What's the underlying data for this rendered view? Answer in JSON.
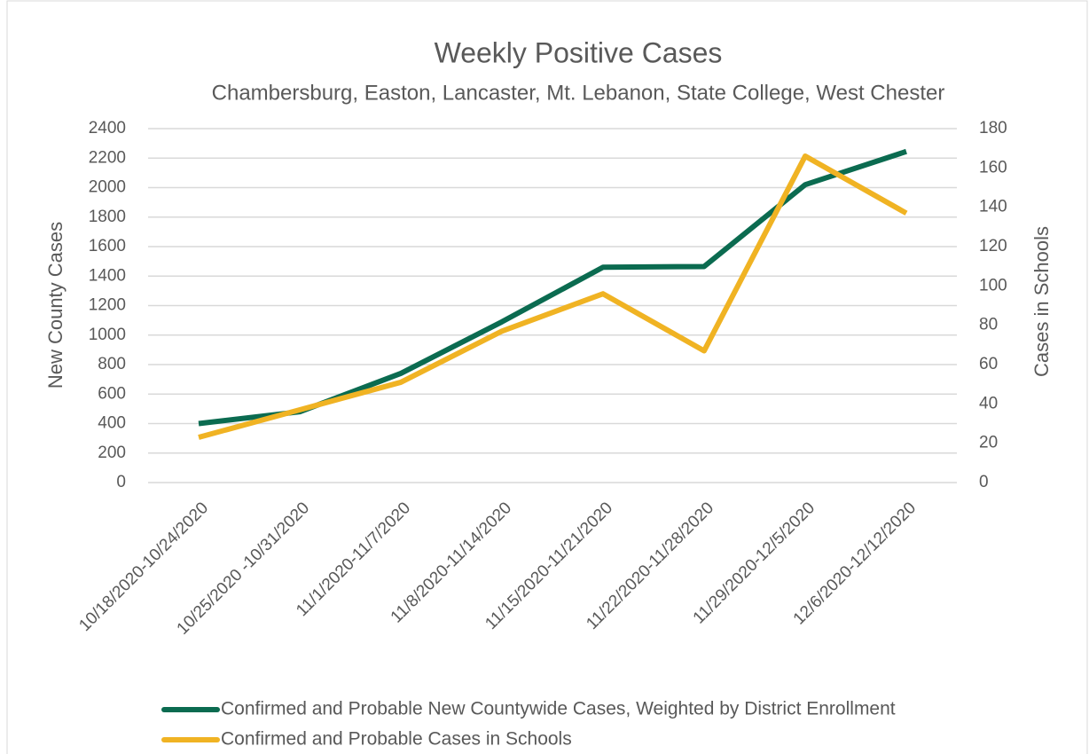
{
  "chart_data": {
    "type": "line",
    "title": "Weekly Positive Cases",
    "subtitle": "Chambersburg, Easton, Lancaster, Mt. Lebanon, State College, West Chester",
    "y_label": "New County Cases",
    "y2_label": "Cases in Schools",
    "categories": [
      "10/18/2020-10/24/2020",
      "10/25/2020 -10/31/2020",
      "11/1/2020-11/7/2020",
      "11/8/2020-11/14/2020",
      "11/15/2020-11/21/2020",
      "11/22/2020-11/28/2020",
      "11/29/2020-12/5/2020",
      "12/6/2020-12/12/2020"
    ],
    "series": [
      {
        "name": "Confirmed and Probable New Countywide Cases, Weighted by District Enrollment",
        "color": "#0b6b50",
        "values": [
          400,
          480,
          740,
          1090,
          1460,
          1465,
          2020,
          2245
        ]
      },
      {
        "name": "Confirmed and Probable Cases in Schools",
        "color": "#f0b323",
        "axis": "y2",
        "values": [
          23,
          37,
          51,
          77,
          96,
          67,
          166,
          137
        ]
      }
    ],
    "ylim": [
      0,
      2400
    ],
    "yticks": [
      0,
      200,
      400,
      600,
      800,
      1000,
      1200,
      1400,
      1600,
      1800,
      2000,
      2200,
      2400
    ],
    "y2lim": [
      0,
      180
    ],
    "y2ticks": [
      0,
      20,
      40,
      60,
      80,
      100,
      120,
      140,
      160,
      180
    ],
    "grid": true,
    "legend": "bottom"
  }
}
